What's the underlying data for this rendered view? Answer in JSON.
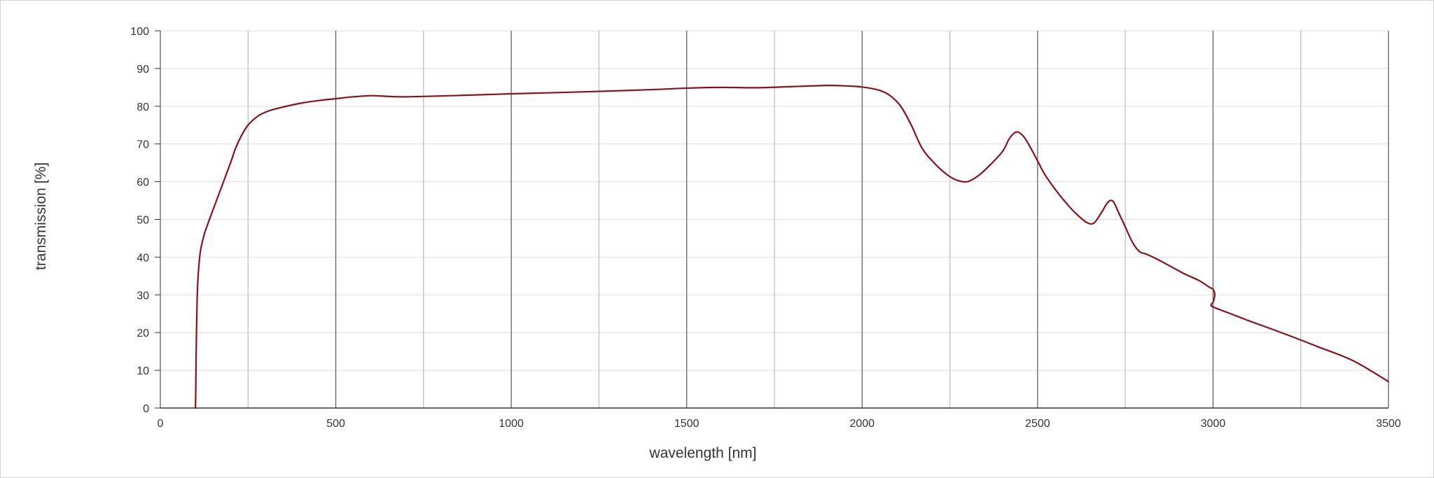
{
  "chart_data": {
    "type": "line",
    "xlabel": "wavelength [nm]",
    "ylabel": "transmission [%]",
    "xlim": [
      0,
      3500
    ],
    "ylim": [
      0,
      100
    ],
    "x_ticks": [
      0,
      500,
      1000,
      1500,
      2000,
      2500,
      3000,
      3500
    ],
    "y_ticks": [
      0,
      10,
      20,
      30,
      40,
      50,
      60,
      70,
      80,
      90,
      100
    ],
    "grid": true,
    "legend": "none",
    "colors": {
      "series": "#8b1219",
      "major_grid": "#555555",
      "minor_grid": "#bbbbbb",
      "h_grid": "#dddddd"
    },
    "series": [
      {
        "x": [
          100,
          101,
          102,
          104,
          106,
          110,
          115,
          125,
          140,
          160,
          180,
          200,
          215,
          230,
          250,
          280,
          310,
          350,
          400,
          450,
          500,
          550,
          600,
          630,
          680,
          750,
          900,
          1000,
          1200,
          1400,
          1500,
          1600,
          1700,
          1800,
          1900,
          1950,
          2000,
          2050,
          2080,
          2110,
          2140,
          2170,
          2200,
          2240,
          2270,
          2300,
          2330,
          2360,
          2400,
          2420,
          2440,
          2460,
          2480,
          2500,
          2520,
          2550,
          2580,
          2610,
          2640,
          2660,
          2680,
          2700,
          2715,
          2730,
          2750,
          2770,
          2790,
          2810,
          2840,
          2880,
          2920,
          2960,
          2990,
          3000,
          3005,
          3000,
          2995,
          3000,
          3050,
          3100,
          3200,
          3300,
          3400,
          3500
        ],
        "y": [
          0,
          5,
          14,
          25,
          32,
          38,
          42,
          46,
          50,
          55,
          60,
          65,
          69,
          72,
          75,
          77.5,
          78.8,
          79.8,
          80.8,
          81.5,
          82,
          82.5,
          82.8,
          82.7,
          82.5,
          82.6,
          83,
          83.3,
          83.8,
          84.4,
          84.8,
          85,
          84.9,
          85.2,
          85.5,
          85.4,
          85.1,
          84.2,
          82.8,
          80,
          75,
          69,
          65.5,
          62,
          60.4,
          60,
          61.5,
          64,
          68,
          71.5,
          73.2,
          72,
          69,
          65.5,
          62,
          58,
          54.5,
          51.5,
          49.2,
          49,
          51.5,
          54.5,
          54.8,
          52,
          48,
          44,
          41.5,
          40.8,
          39.5,
          37.5,
          35.5,
          33.8,
          32,
          31.5,
          30,
          28,
          27.5,
          26.8,
          25,
          23.2,
          19.8,
          16.2,
          12.5,
          7
        ]
      }
    ]
  }
}
